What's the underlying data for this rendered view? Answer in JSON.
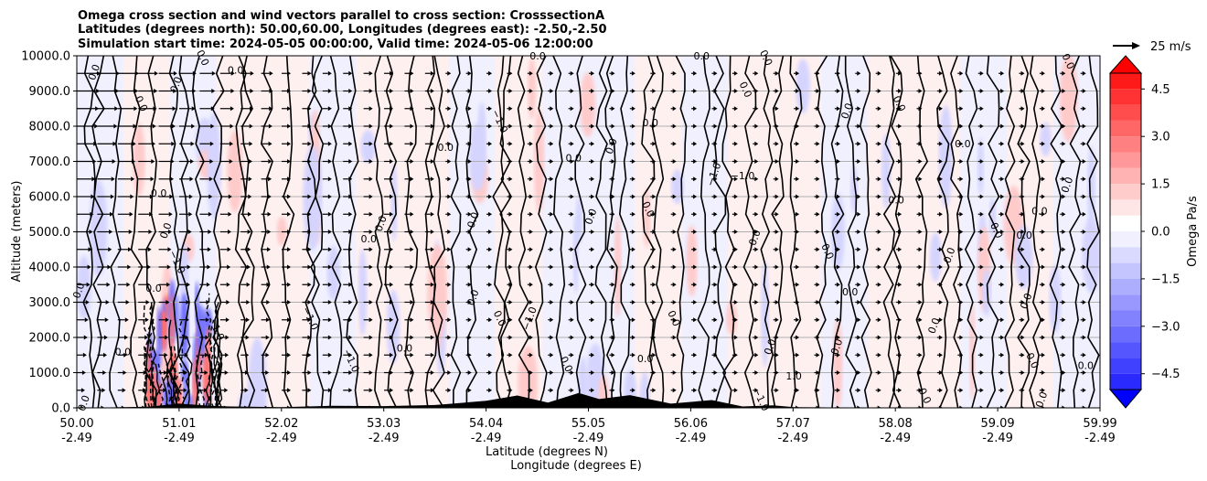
{
  "chart_data": {
    "type": "heatmap",
    "title_lines": [
      "Omega cross section and wind vectors parallel to cross section: CrosssectionA",
      "Latitudes (degrees north): 50.00,60.00, Longitudes (degrees east): -2.50,-2.50",
      "Simulation start time: 2024-05-05 00:00:00, Valid time: 2024-05-06 12:00:00"
    ],
    "ylabel": "Altitude (meters)",
    "xlabel_line1": "Latitude (degrees N)",
    "xlabel_line2": "Longitude (degrees E)",
    "ylim": [
      0,
      10000
    ],
    "xlim": [
      50.0,
      59.99
    ],
    "y_ticks": [
      "0.0",
      "1000.0",
      "2000.0",
      "3000.0",
      "4000.0",
      "5000.0",
      "6000.0",
      "7000.0",
      "8000.0",
      "9000.0",
      "10000.0"
    ],
    "x_ticks": [
      {
        "lat": "50.00",
        "lon": "-2.49"
      },
      {
        "lat": "51.01",
        "lon": "-2.49"
      },
      {
        "lat": "52.02",
        "lon": "-2.49"
      },
      {
        "lat": "53.03",
        "lon": "-2.49"
      },
      {
        "lat": "54.04",
        "lon": "-2.49"
      },
      {
        "lat": "55.05",
        "lon": "-2.49"
      },
      {
        "lat": "56.06",
        "lon": "-2.49"
      },
      {
        "lat": "57.07",
        "lon": "-2.49"
      },
      {
        "lat": "58.08",
        "lon": "-2.49"
      },
      {
        "lat": "59.09",
        "lon": "-2.49"
      },
      {
        "lat": "59.99",
        "lon": "-2.49"
      }
    ],
    "grid": "horizontal",
    "colorbar": {
      "label": "Omega Pa/s",
      "ticks": [
        "4.5",
        "3.0",
        "1.5",
        "0.0",
        "−1.5",
        "−3.0",
        "−4.5"
      ],
      "range": [
        -5.0,
        5.0
      ],
      "colormap": "bwr",
      "extend": "both"
    },
    "quiver_key": {
      "label": "25 m/s",
      "speed": 25
    },
    "contour_labels": [
      {
        "text": "0.0",
        "lat": 50.2,
        "alt": 9500
      },
      {
        "text": "0.0",
        "lat": 51.2,
        "alt": 9900
      },
      {
        "text": "0.0",
        "lat": 51.55,
        "alt": 9500
      },
      {
        "text": "0.0",
        "lat": 51.0,
        "alt": 9150
      },
      {
        "text": "0.0",
        "lat": 50.6,
        "alt": 8600
      },
      {
        "text": "0.0",
        "lat": 50.8,
        "alt": 6000
      },
      {
        "text": "0.0",
        "lat": 50.9,
        "alt": 5000
      },
      {
        "text": "−1.0",
        "lat": 50.95,
        "alt": 4100
      },
      {
        "text": "0.0",
        "lat": 50.75,
        "alt": 3300
      },
      {
        "text": "0.0",
        "lat": 50.05,
        "alt": 3300
      },
      {
        "text": "1.0",
        "lat": 51.35,
        "alt": 2100
      },
      {
        "text": "0.0",
        "lat": 50.45,
        "alt": 1500
      },
      {
        "text": "0.0",
        "lat": 50.1,
        "alt": 100
      },
      {
        "text": "−1.0",
        "lat": 52.25,
        "alt": 2500
      },
      {
        "text": "0.0",
        "lat": 52.85,
        "alt": 4700
      },
      {
        "text": "0.0",
        "lat": 53.0,
        "alt": 5200
      },
      {
        "text": "−1.0",
        "lat": 52.65,
        "alt": 1300
      },
      {
        "text": "0.0",
        "lat": 53.2,
        "alt": 1600
      },
      {
        "text": "0.0",
        "lat": 53.9,
        "alt": 3100
      },
      {
        "text": "0.0",
        "lat": 54.1,
        "alt": 2500
      },
      {
        "text": "0.0",
        "lat": 53.6,
        "alt": 7300
      },
      {
        "text": "0.0",
        "lat": 53.9,
        "alt": 5300
      },
      {
        "text": "−1.0",
        "lat": 54.1,
        "alt": 8100
      },
      {
        "text": "0.0",
        "lat": 54.5,
        "alt": 9900
      },
      {
        "text": "−1.0",
        "lat": 54.45,
        "alt": 2500
      },
      {
        "text": "0.0",
        "lat": 54.75,
        "alt": 1200
      },
      {
        "text": "0.0",
        "lat": 54.85,
        "alt": 7000
      },
      {
        "text": "0.0",
        "lat": 55.05,
        "alt": 5400
      },
      {
        "text": "0.0",
        "lat": 55.55,
        "alt": 5600
      },
      {
        "text": "0.0",
        "lat": 55.6,
        "alt": 8000
      },
      {
        "text": "0.0",
        "lat": 55.25,
        "alt": 7400
      },
      {
        "text": "0.0",
        "lat": 55.8,
        "alt": 2500
      },
      {
        "text": "0.0",
        "lat": 55.55,
        "alt": 1300
      },
      {
        "text": "−1.0",
        "lat": 56.25,
        "alt": 6600
      },
      {
        "text": "0.0",
        "lat": 56.5,
        "alt": 9000
      },
      {
        "text": "−1.0",
        "lat": 56.5,
        "alt": 6500
      },
      {
        "text": "0.0",
        "lat": 56.65,
        "alt": 4800
      },
      {
        "text": "0.0",
        "lat": 57.3,
        "alt": 4400
      },
      {
        "text": "0.0",
        "lat": 57.55,
        "alt": 3200
      },
      {
        "text": "0.0",
        "lat": 57.45,
        "alt": 1700
      },
      {
        "text": "−1.0",
        "lat": 56.65,
        "alt": 200
      },
      {
        "text": "1.0",
        "lat": 57.0,
        "alt": 800
      },
      {
        "text": "0.0",
        "lat": 56.8,
        "alt": 1700
      },
      {
        "text": "0.0",
        "lat": 56.7,
        "alt": 9900
      },
      {
        "text": "0.0",
        "lat": 56.1,
        "alt": 9900
      },
      {
        "text": "0.0",
        "lat": 57.55,
        "alt": 8400
      },
      {
        "text": "0.0",
        "lat": 58.0,
        "alt": 8600
      },
      {
        "text": "0.0",
        "lat": 58.0,
        "alt": 5800
      },
      {
        "text": "0.0",
        "lat": 58.4,
        "alt": 2300
      },
      {
        "text": "0.0",
        "lat": 58.25,
        "alt": 300
      },
      {
        "text": "0.0",
        "lat": 58.65,
        "alt": 7400
      },
      {
        "text": "0.0",
        "lat": 58.55,
        "alt": 4300
      },
      {
        "text": "0.0",
        "lat": 58.95,
        "alt": 5000
      },
      {
        "text": "0.0",
        "lat": 59.25,
        "alt": 4800
      },
      {
        "text": "0.0",
        "lat": 59.3,
        "alt": 3000
      },
      {
        "text": "0.0",
        "lat": 59.3,
        "alt": 1300
      },
      {
        "text": "0.0",
        "lat": 59.4,
        "alt": 5500
      },
      {
        "text": "0.0",
        "lat": 59.7,
        "alt": 6300
      },
      {
        "text": "0.0",
        "lat": 59.65,
        "alt": 9800
      },
      {
        "text": "0.0",
        "lat": 59.85,
        "alt": 1100
      },
      {
        "text": "0.0",
        "lat": 59.45,
        "alt": 200
      }
    ]
  }
}
